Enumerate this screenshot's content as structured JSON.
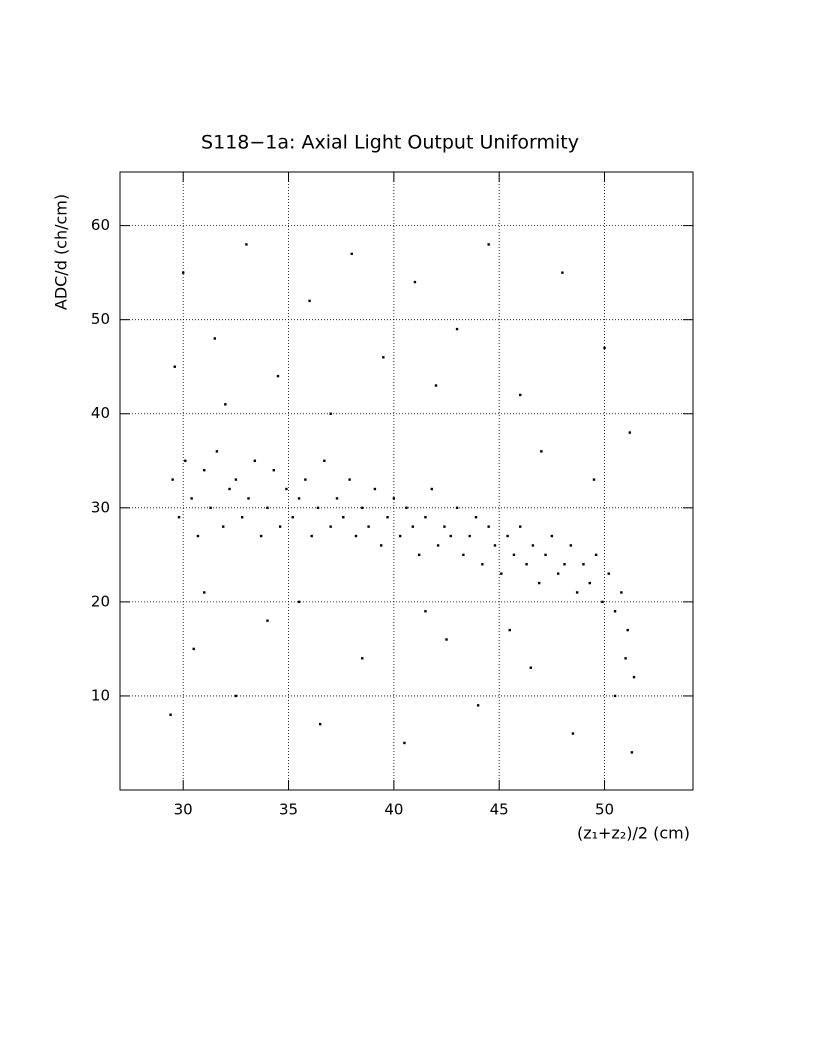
{
  "chart_data": {
    "type": "scatter",
    "title": "S118−1a: Axial Light Output Uniformity",
    "x_label": "(z₁+z₂)/2 (cm)",
    "y_label": "ADC/d (ch/cm)",
    "color": "#000000",
    "xlim": [
      27,
      54.2
    ],
    "ylim": [
      0,
      65.7
    ],
    "xticks": [
      30,
      35,
      40,
      45,
      50
    ],
    "yticks": [
      10,
      20,
      30,
      40,
      50,
      60
    ],
    "grid": true,
    "x": [
      29.5,
      29.8,
      30.1,
      30.4,
      30.7,
      31.0,
      31.3,
      31.6,
      31.9,
      32.2,
      32.5,
      32.8,
      33.1,
      33.4,
      33.7,
      34.0,
      34.3,
      34.6,
      34.9,
      35.2,
      35.5,
      35.8,
      36.1,
      36.4,
      36.7,
      37.0,
      37.3,
      37.6,
      37.9,
      38.2,
      38.5,
      38.8,
      39.1,
      39.4,
      39.7,
      40.0,
      40.3,
      40.6,
      40.9,
      41.2,
      41.5,
      41.8,
      42.1,
      42.4,
      42.7,
      43.0,
      43.3,
      43.6,
      43.9,
      44.2,
      44.5,
      44.8,
      45.1,
      45.4,
      45.7,
      46.0,
      46.3,
      46.6,
      46.9,
      47.2,
      47.5,
      47.8,
      48.1,
      48.4,
      48.7,
      49.0,
      49.3,
      49.6,
      49.9,
      50.2,
      50.5,
      50.8,
      51.1,
      51.4,
      30.0,
      31.5,
      33,
      34.5,
      36,
      38,
      39.5,
      41,
      43,
      44.5,
      46,
      48,
      50,
      51.2,
      29.6,
      32,
      37,
      42,
      47,
      49.5,
      30.5,
      32.5,
      34,
      36.5,
      38.5,
      40.5,
      42.5,
      44,
      46.5,
      48.5,
      50.5,
      51.3,
      29.4,
      31,
      35.5,
      41.5,
      45.5,
      51
    ],
    "values": [
      33,
      29,
      35,
      31,
      27,
      34,
      30,
      36,
      28,
      32,
      33,
      29,
      31,
      35,
      27,
      30,
      34,
      28,
      32,
      29,
      31,
      33,
      27,
      30,
      35,
      28,
      31,
      29,
      33,
      27,
      30,
      28,
      32,
      26,
      29,
      31,
      27,
      30,
      28,
      25,
      29,
      32,
      26,
      28,
      27,
      30,
      25,
      27,
      29,
      24,
      28,
      26,
      23,
      27,
      25,
      28,
      24,
      26,
      22,
      25,
      27,
      23,
      24,
      26,
      21,
      24,
      22,
      25,
      20,
      23,
      19,
      21,
      17,
      12,
      55,
      48,
      58,
      44,
      52,
      57,
      46,
      54,
      49,
      58,
      42,
      55,
      47,
      38,
      45,
      41,
      40,
      43,
      36,
      33,
      15,
      10,
      18,
      7,
      14,
      5,
      16,
      9,
      13,
      6,
      10,
      4,
      8,
      21,
      20,
      19,
      17,
      14
    ]
  }
}
